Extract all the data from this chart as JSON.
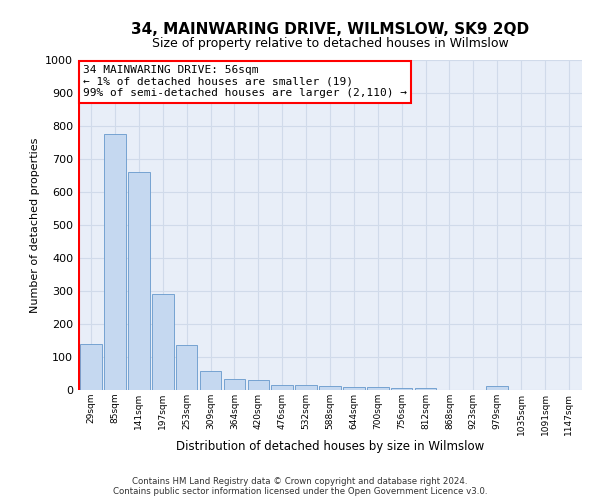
{
  "title": "34, MAINWARING DRIVE, WILMSLOW, SK9 2QD",
  "subtitle": "Size of property relative to detached houses in Wilmslow",
  "xlabel": "Distribution of detached houses by size in Wilmslow",
  "ylabel": "Number of detached properties",
  "footer_line1": "Contains HM Land Registry data © Crown copyright and database right 2024.",
  "footer_line2": "Contains public sector information licensed under the Open Government Licence v3.0.",
  "annotation_line1": "34 MAINWARING DRIVE: 56sqm",
  "annotation_line2": "← 1% of detached houses are smaller (19)",
  "annotation_line3": "99% of semi-detached houses are larger (2,110) →",
  "bar_categories": [
    "29sqm",
    "85sqm",
    "141sqm",
    "197sqm",
    "253sqm",
    "309sqm",
    "364sqm",
    "420sqm",
    "476sqm",
    "532sqm",
    "588sqm",
    "644sqm",
    "700sqm",
    "756sqm",
    "812sqm",
    "868sqm",
    "923sqm",
    "979sqm",
    "1035sqm",
    "1091sqm",
    "1147sqm"
  ],
  "bar_values": [
    140,
    775,
    660,
    290,
    135,
    57,
    32,
    30,
    15,
    15,
    13,
    8,
    8,
    5,
    5,
    0,
    0,
    13,
    0,
    0,
    0
  ],
  "bar_color": "#c5d8f0",
  "bar_edge_color": "#6699cc",
  "grid_color": "#d0daea",
  "bg_color": "#e8eef8",
  "ylim": [
    0,
    1000
  ],
  "yticks": [
    0,
    100,
    200,
    300,
    400,
    500,
    600,
    700,
    800,
    900,
    1000
  ],
  "red_line_x": -0.5,
  "title_fontsize": 11,
  "subtitle_fontsize": 9
}
